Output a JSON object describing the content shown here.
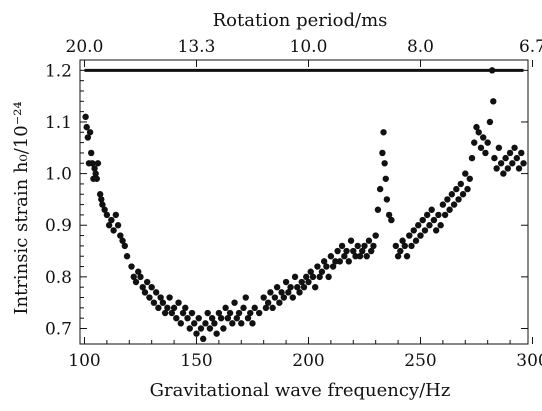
{
  "chart_data": {
    "type": "scatter",
    "xlabel": "Gravitational wave frequency/Hz",
    "x2label": "Rotation period/ms",
    "ylabel": "Intrinsic strain h₀/10⁻²⁴",
    "xlim": [
      98,
      298
    ],
    "ylim": [
      0.67,
      1.22
    ],
    "xticks": [
      100,
      150,
      200,
      250,
      300
    ],
    "x2ticks": [
      {
        "x": 100,
        "label": "20.0"
      },
      {
        "x": 150,
        "label": "13.3"
      },
      {
        "x": 200,
        "label": "10.0"
      },
      {
        "x": 250,
        "label": "8.0"
      },
      {
        "x": 300,
        "label": "6.7"
      }
    ],
    "yticks": [
      0.7,
      0.8,
      0.9,
      1.0,
      1.1,
      1.2
    ],
    "grid": false,
    "reference_line": {
      "y": 1.2,
      "x_range": [
        100,
        296
      ]
    },
    "series": [
      {
        "points": [
          [
            100.5,
            1.11
          ],
          [
            101,
            1.09
          ],
          [
            101.5,
            1.07
          ],
          [
            102,
            1.02
          ],
          [
            102.5,
            1.08
          ],
          [
            103,
            1.04
          ],
          [
            103.5,
            1.02
          ],
          [
            104,
            0.99
          ],
          [
            104.5,
            1.01
          ],
          [
            105,
            1.0
          ],
          [
            105.5,
            0.99
          ],
          [
            106,
            1.02
          ],
          [
            107,
            0.96
          ],
          [
            107.5,
            0.95
          ],
          [
            108,
            0.94
          ],
          [
            109,
            0.93
          ],
          [
            110,
            0.92
          ],
          [
            111,
            0.9
          ],
          [
            112,
            0.91
          ],
          [
            113,
            0.89
          ],
          [
            114,
            0.92
          ],
          [
            115,
            0.9
          ],
          [
            116,
            0.88
          ],
          [
            117,
            0.87
          ],
          [
            118,
            0.86
          ],
          [
            119,
            0.84
          ],
          [
            121,
            0.82
          ],
          [
            122,
            0.8
          ],
          [
            123,
            0.79
          ],
          [
            124,
            0.81
          ],
          [
            125,
            0.8
          ],
          [
            126,
            0.78
          ],
          [
            127,
            0.77
          ],
          [
            128,
            0.79
          ],
          [
            129,
            0.76
          ],
          [
            130,
            0.78
          ],
          [
            131,
            0.75
          ],
          [
            132,
            0.77
          ],
          [
            133,
            0.74
          ],
          [
            134,
            0.76
          ],
          [
            135,
            0.75
          ],
          [
            136,
            0.73
          ],
          [
            137,
            0.74
          ],
          [
            138,
            0.76
          ],
          [
            139,
            0.73
          ],
          [
            140,
            0.74
          ],
          [
            141,
            0.72
          ],
          [
            142,
            0.75
          ],
          [
            143,
            0.71
          ],
          [
            144,
            0.73
          ],
          [
            145,
            0.74
          ],
          [
            146,
            0.72
          ],
          [
            147,
            0.7
          ],
          [
            148,
            0.73
          ],
          [
            149,
            0.71
          ],
          [
            150,
            0.69
          ],
          [
            151,
            0.72
          ],
          [
            152,
            0.7
          ],
          [
            153,
            0.68
          ],
          [
            154,
            0.71
          ],
          [
            155,
            0.73
          ],
          [
            156,
            0.7
          ],
          [
            157,
            0.72
          ],
          [
            158,
            0.71
          ],
          [
            159,
            0.69
          ],
          [
            160,
            0.73
          ],
          [
            161,
            0.72
          ],
          [
            162,
            0.7
          ],
          [
            163,
            0.74
          ],
          [
            164,
            0.72
          ],
          [
            165,
            0.73
          ],
          [
            166,
            0.71
          ],
          [
            167,
            0.75
          ],
          [
            168,
            0.72
          ],
          [
            169,
            0.73
          ],
          [
            170,
            0.71
          ],
          [
            171,
            0.74
          ],
          [
            172,
            0.76
          ],
          [
            173,
            0.72
          ],
          [
            174,
            0.73
          ],
          [
            175,
            0.71
          ],
          [
            176,
            0.74
          ],
          [
            178,
            0.73
          ],
          [
            180,
            0.76
          ],
          [
            181,
            0.74
          ],
          [
            182,
            0.75
          ],
          [
            183,
            0.77
          ],
          [
            184,
            0.74
          ],
          [
            185,
            0.76
          ],
          [
            186,
            0.78
          ],
          [
            187,
            0.75
          ],
          [
            188,
            0.77
          ],
          [
            189,
            0.76
          ],
          [
            190,
            0.79
          ],
          [
            191,
            0.77
          ],
          [
            192,
            0.78
          ],
          [
            193,
            0.76
          ],
          [
            194,
            0.8
          ],
          [
            195,
            0.78
          ],
          [
            196,
            0.77
          ],
          [
            197,
            0.79
          ],
          [
            198,
            0.78
          ],
          [
            199,
            0.8
          ],
          [
            200,
            0.79
          ],
          [
            201,
            0.81
          ],
          [
            202,
            0.8
          ],
          [
            203,
            0.78
          ],
          [
            204,
            0.82
          ],
          [
            205,
            0.8
          ],
          [
            206,
            0.81
          ],
          [
            207,
            0.83
          ],
          [
            208,
            0.82
          ],
          [
            209,
            0.8
          ],
          [
            210,
            0.84
          ],
          [
            211,
            0.82
          ],
          [
            212,
            0.83
          ],
          [
            213,
            0.85
          ],
          [
            214,
            0.83
          ],
          [
            215,
            0.86
          ],
          [
            216,
            0.84
          ],
          [
            217,
            0.85
          ],
          [
            218,
            0.83
          ],
          [
            219,
            0.87
          ],
          [
            220,
            0.85
          ],
          [
            221,
            0.84
          ],
          [
            222,
            0.86
          ],
          [
            223,
            0.84
          ],
          [
            224,
            0.85
          ],
          [
            225,
            0.86
          ],
          [
            226,
            0.84
          ],
          [
            227,
            0.87
          ],
          [
            228,
            0.85
          ],
          [
            229,
            0.86
          ],
          [
            230,
            0.88
          ],
          [
            231,
            0.93
          ],
          [
            232,
            0.97
          ],
          [
            233,
            1.04
          ],
          [
            233.5,
            1.08
          ],
          [
            234,
            1.02
          ],
          [
            234.5,
            0.99
          ],
          [
            235,
            0.95
          ],
          [
            236,
            0.92
          ],
          [
            237,
            0.91
          ],
          [
            239,
            0.86
          ],
          [
            240,
            0.84
          ],
          [
            241,
            0.85
          ],
          [
            242,
            0.87
          ],
          [
            243,
            0.86
          ],
          [
            244,
            0.84
          ],
          [
            245,
            0.88
          ],
          [
            246,
            0.86
          ],
          [
            247,
            0.89
          ],
          [
            248,
            0.87
          ],
          [
            249,
            0.9
          ],
          [
            250,
            0.88
          ],
          [
            251,
            0.91
          ],
          [
            252,
            0.89
          ],
          [
            253,
            0.92
          ],
          [
            254,
            0.9
          ],
          [
            255,
            0.93
          ],
          [
            256,
            0.91
          ],
          [
            257,
            0.89
          ],
          [
            258,
            0.92
          ],
          [
            259,
            0.9
          ],
          [
            260,
            0.94
          ],
          [
            261,
            0.92
          ],
          [
            262,
            0.95
          ],
          [
            263,
            0.93
          ],
          [
            264,
            0.96
          ],
          [
            265,
            0.94
          ],
          [
            266,
            0.97
          ],
          [
            267,
            0.95
          ],
          [
            268,
            0.98
          ],
          [
            269,
            0.96
          ],
          [
            270,
            1.0
          ],
          [
            271,
            0.97
          ],
          [
            272,
            0.99
          ],
          [
            273,
            1.03
          ],
          [
            274,
            1.06
          ],
          [
            275,
            1.09
          ],
          [
            276,
            1.08
          ],
          [
            277,
            1.05
          ],
          [
            278,
            1.07
          ],
          [
            279,
            1.04
          ],
          [
            280,
            1.06
          ],
          [
            281,
            1.1
          ],
          [
            282,
            1.2
          ],
          [
            282.5,
            1.14
          ],
          [
            283,
            1.03
          ],
          [
            284,
            1.01
          ],
          [
            285,
            1.05
          ],
          [
            286,
            1.02
          ],
          [
            287,
            1.0
          ],
          [
            288,
            1.03
          ],
          [
            289,
            1.01
          ],
          [
            290,
            1.04
          ],
          [
            291,
            1.02
          ],
          [
            292,
            1.05
          ],
          [
            293,
            1.03
          ],
          [
            294,
            1.01
          ],
          [
            295,
            1.04
          ],
          [
            296,
            1.02
          ]
        ]
      }
    ]
  }
}
